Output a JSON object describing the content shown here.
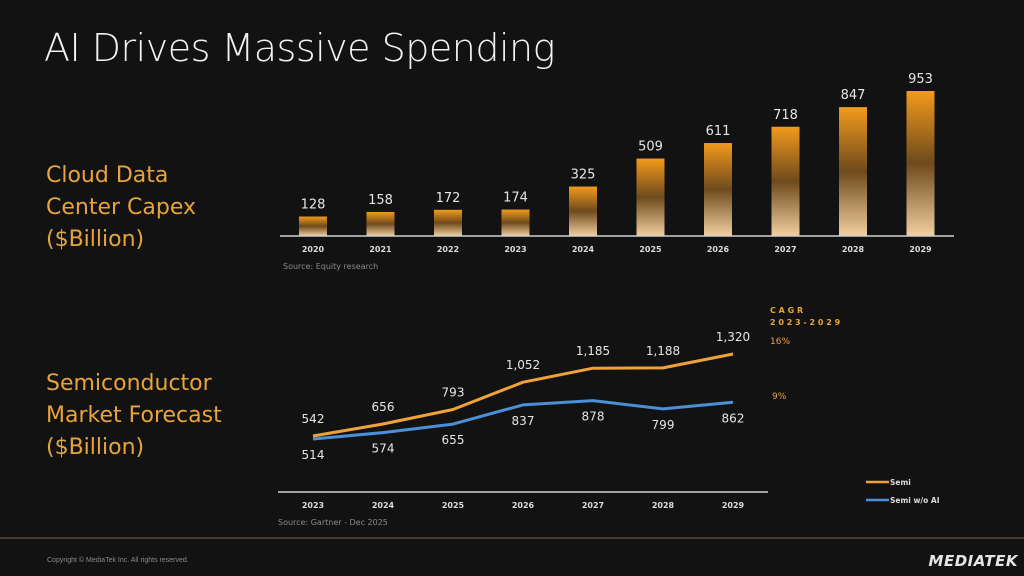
{
  "title": "AI Drives Massive Spending",
  "sections": {
    "capex_label": [
      "Cloud Data",
      "Center Capex",
      "($Billion)"
    ],
    "semi_label": [
      "Semiconductor",
      "Market Forecast",
      "($Billion)"
    ]
  },
  "colors": {
    "accent": "#e8a43c",
    "semi": "#f0a23a",
    "semi_wo_ai": "#4a8fd8",
    "text": "#e6e6e6"
  },
  "chart_data": [
    {
      "type": "bar",
      "title": "Cloud Data Center Capex ($Billion)",
      "categories": [
        "2020",
        "2021",
        "2022",
        "2023",
        "2024",
        "2025",
        "2026",
        "2027",
        "2028",
        "2029"
      ],
      "values": [
        128,
        158,
        172,
        174,
        325,
        509,
        611,
        718,
        847,
        953
      ],
      "labels": [
        "128",
        "158",
        "172",
        "174",
        "325",
        "509",
        "611",
        "718",
        "847",
        "953"
      ],
      "ylim": [
        0,
        953
      ],
      "source": "Source:  Equity research"
    },
    {
      "type": "line",
      "title": "Semiconductor Market Forecast ($Billion)",
      "categories": [
        "2023",
        "2024",
        "2025",
        "2026",
        "2027",
        "2028",
        "2029"
      ],
      "series": [
        {
          "name": "Semi",
          "values": [
            542,
            656,
            793,
            1052,
            1185,
            1188,
            1320
          ],
          "labels": [
            "542",
            "656",
            "793",
            "1,052",
            "1,185",
            "1,188",
            "1,320"
          ],
          "cagr": "16%"
        },
        {
          "name": "Semi w/o AI",
          "values": [
            514,
            574,
            655,
            837,
            878,
            799,
            862
          ],
          "labels": [
            "514",
            "574",
            "655",
            "837",
            "878",
            "799",
            "862"
          ],
          "cagr": "9%"
        }
      ],
      "cagr_title": [
        "C A G R",
        "2 0 2 3 - 2 0 2 9"
      ],
      "legend": "bottom-right",
      "source": "Source: Gartner - Dec 2025"
    }
  ],
  "footer": {
    "copyright": "Copyright © MediaTek Inc. All rights reserved.",
    "logo": "MEDIATEK"
  }
}
